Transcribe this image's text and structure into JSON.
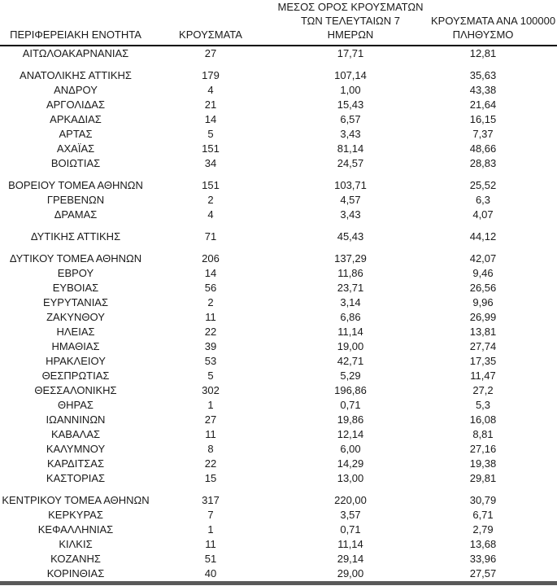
{
  "document": {
    "kind": "table-report",
    "language": "el",
    "columns": [
      {
        "id": "region",
        "label": "ΠΕΡΙΦΕΡΕΙΑΚΗ ΕΝΟΤΗΤΑ",
        "lines": [
          "ΠΕΡΙΦΕΡΕΙΑΚΗ ΕΝΟΤΗΤΑ"
        ]
      },
      {
        "id": "cases",
        "label": "ΚΡΟΥΣΜΑΤΑ",
        "lines": [
          "ΚΡΟΥΣΜΑΤΑ"
        ]
      },
      {
        "id": "avg7",
        "label": "ΜΕΣΟΣ ΟΡΟΣ ΚΡΟΥΣΜΑΤΩΝ ΤΩΝ ΤΕΛΕΥΤΑΙΩΝ 7 ΗΜΕΡΩΝ",
        "lines": [
          "ΜΕΣΟΣ ΟΡΟΣ ΚΡΟΥΣΜΑΤΩΝ",
          "ΤΩΝ ΤΕΛΕΥΤΑΙΩΝ 7",
          "ΗΜΕΡΩΝ"
        ]
      },
      {
        "id": "per100k",
        "label": "ΚΡΟΥΣΜΑΤΑ ΑΝΑ 100000 ΠΛΗΘΥΣΜΟ",
        "lines": [
          "ΚΡΟΥΣΜΑΤΑ ΑΝΑ 100000",
          "ΠΛΗΘΥΣΜΟ"
        ]
      }
    ],
    "groups": [
      {
        "rows": [
          [
            "ΑΙΤΩΛΟΑΚΑΡΝΑΝΙΑΣ",
            "27",
            "17,71",
            "12,81"
          ]
        ]
      },
      {
        "rows": [
          [
            "ΑΝΑΤΟΛΙΚΗΣ ΑΤΤΙΚΗΣ",
            "179",
            "107,14",
            "35,63"
          ],
          [
            "ΑΝΔΡΟΥ",
            "4",
            "1,00",
            "43,38"
          ],
          [
            "ΑΡΓΟΛΙΔΑΣ",
            "21",
            "15,43",
            "21,64"
          ],
          [
            "ΑΡΚΑΔΙΑΣ",
            "14",
            "6,57",
            "16,15"
          ],
          [
            "ΑΡΤΑΣ",
            "5",
            "3,43",
            "7,37"
          ],
          [
            "ΑΧΑΪΑΣ",
            "151",
            "81,14",
            "48,66"
          ],
          [
            "ΒΟΙΩΤΙΑΣ",
            "34",
            "24,57",
            "28,83"
          ]
        ]
      },
      {
        "rows": [
          [
            "ΒΟΡΕΙΟΥ ΤΟΜΕΑ ΑΘΗΝΩΝ",
            "151",
            "103,71",
            "25,52"
          ],
          [
            "ΓΡΕΒΕΝΩΝ",
            "2",
            "4,57",
            "6,3"
          ],
          [
            "ΔΡΑΜΑΣ",
            "4",
            "3,43",
            "4,07"
          ]
        ]
      },
      {
        "rows": [
          [
            "ΔΥΤΙΚΗΣ ΑΤΤΙΚΗΣ",
            "71",
            "45,43",
            "44,12"
          ]
        ]
      },
      {
        "rows": [
          [
            "ΔΥΤΙΚΟΥ ΤΟΜΕΑ ΑΘΗΝΩΝ",
            "206",
            "137,29",
            "42,07"
          ],
          [
            "ΕΒΡΟΥ",
            "14",
            "11,86",
            "9,46"
          ],
          [
            "ΕΥΒΟΙΑΣ",
            "56",
            "23,71",
            "26,56"
          ],
          [
            "ΕΥΡΥΤΑΝΙΑΣ",
            "2",
            "3,14",
            "9,96"
          ],
          [
            "ΖΑΚΥΝΘΟΥ",
            "11",
            "6,86",
            "26,99"
          ],
          [
            "ΗΛΕΙΑΣ",
            "22",
            "11,14",
            "13,81"
          ],
          [
            "ΗΜΑΘΙΑΣ",
            "39",
            "19,00",
            "27,74"
          ],
          [
            "ΗΡΑΚΛΕΙΟΥ",
            "53",
            "42,71",
            "17,35"
          ],
          [
            "ΘΕΣΠΡΩΤΙΑΣ",
            "5",
            "5,29",
            "11,47"
          ],
          [
            "ΘΕΣΣΑΛΟΝΙΚΗΣ",
            "302",
            "196,86",
            "27,2"
          ],
          [
            "ΘΗΡΑΣ",
            "1",
            "0,71",
            "5,3"
          ],
          [
            "ΙΩΑΝΝΙΝΩΝ",
            "27",
            "19,86",
            "16,08"
          ],
          [
            "ΚΑΒΑΛΑΣ",
            "11",
            "12,14",
            "8,81"
          ],
          [
            "ΚΑΛΥΜΝΟΥ",
            "8",
            "6,00",
            "27,16"
          ],
          [
            "ΚΑΡΔΙΤΣΑΣ",
            "22",
            "14,29",
            "19,38"
          ],
          [
            "ΚΑΣΤΟΡΙΑΣ",
            "15",
            "13,00",
            "29,81"
          ]
        ]
      },
      {
        "rows": [
          [
            "ΚΕΝΤΡΙΚΟΥ ΤΟΜΕΑ ΑΘΗΝΩΝ",
            "317",
            "220,00",
            "30,79"
          ],
          [
            "ΚΕΡΚΥΡΑΣ",
            "7",
            "3,57",
            "6,71"
          ],
          [
            "ΚΕΦΑΛΛΗΝΙΑΣ",
            "1",
            "0,71",
            "2,79"
          ],
          [
            "ΚΙΛΚΙΣ",
            "11",
            "11,14",
            "13,68"
          ],
          [
            "ΚΟΖΑΝΗΣ",
            "51",
            "29,14",
            "33,96"
          ],
          [
            "ΚΟΡΙΝΘΙΑΣ",
            "40",
            "29,00",
            "27,57"
          ]
        ]
      }
    ]
  },
  "colors": {
    "background": "#ffffff",
    "text": "#1a1a1a",
    "header_rule": "#000000",
    "bottom_bar": "#595959"
  }
}
